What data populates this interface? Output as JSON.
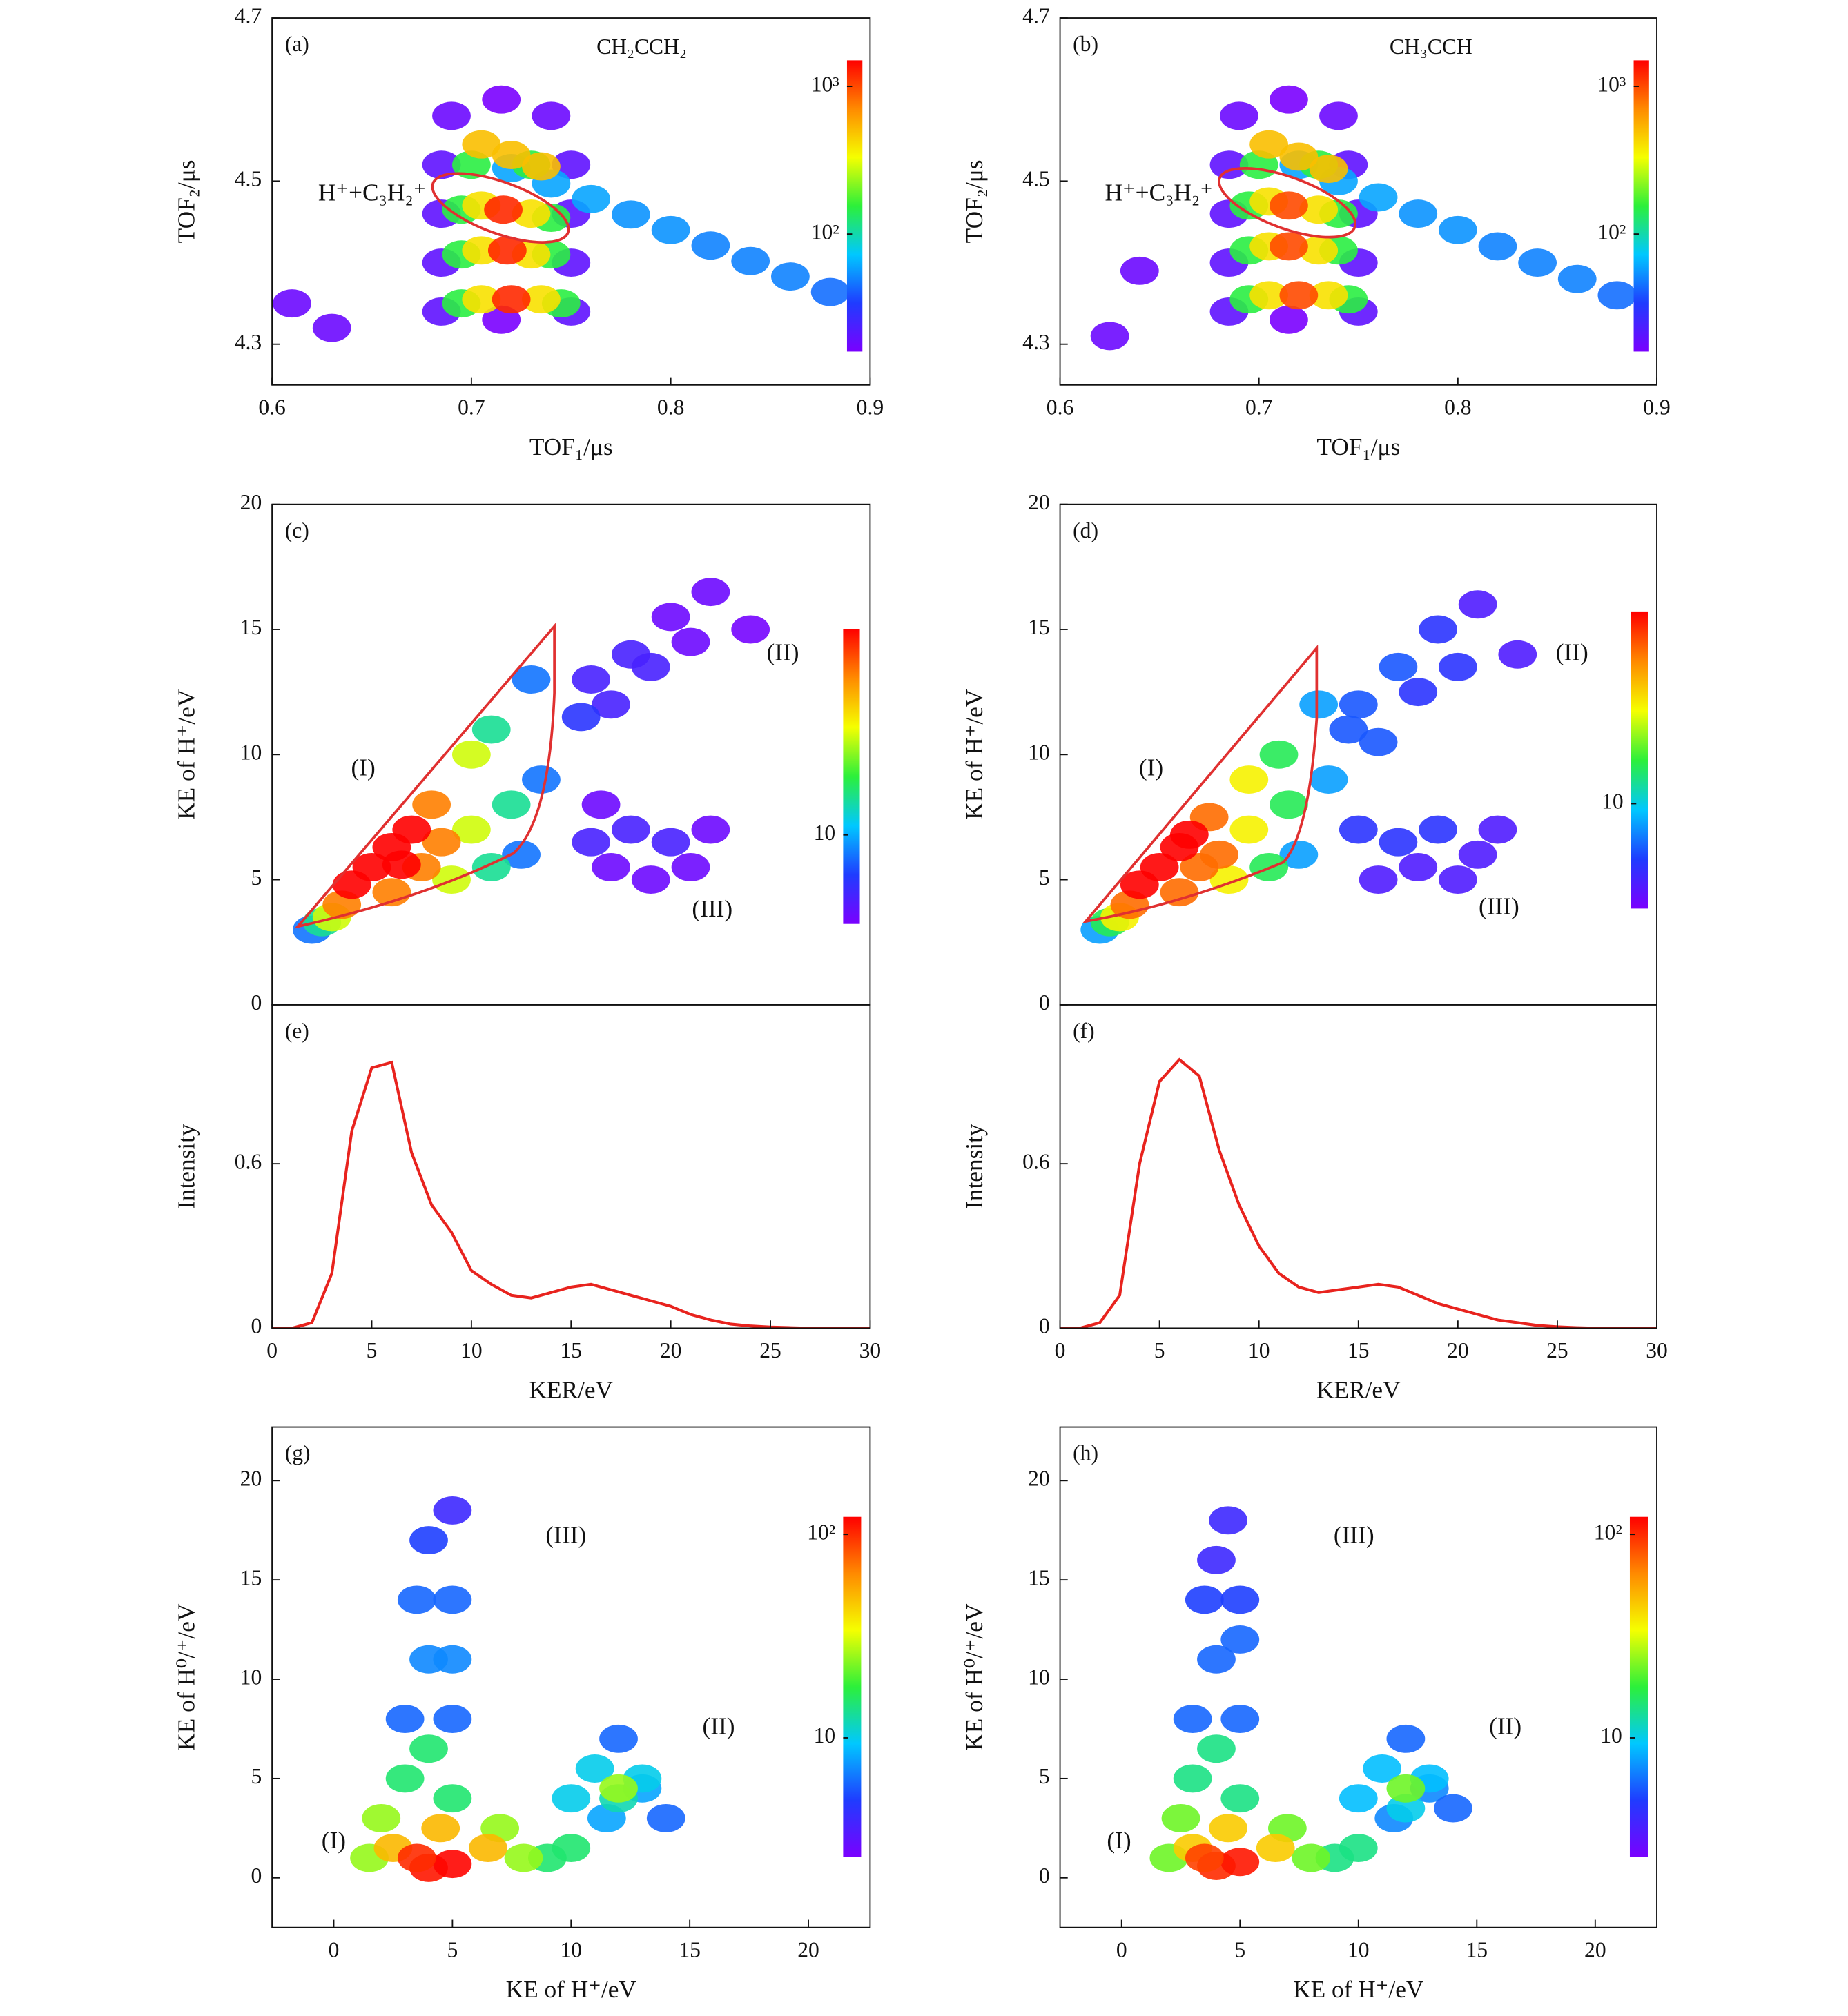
{
  "chart_data": [
    {
      "type": "heatmap",
      "panel_label": "(a)",
      "title": "CH₂CCH₂",
      "xlabel": "TOF₁/μs",
      "ylabel": "TOF₂/μs",
      "xlim": [
        0.6,
        0.9
      ],
      "xticks": [
        0.6,
        0.7,
        0.8,
        0.9
      ],
      "ylim": [
        4.25,
        4.7
      ],
      "yticks": [
        4.3,
        4.5,
        4.7
      ],
      "annotations": [
        "H⁺+C₃H₂⁺"
      ],
      "clim": [
        16,
        1500
      ],
      "log_color": true,
      "cticks": [
        {
          "value": 1000,
          "label": "10³"
        },
        {
          "value": 100,
          "label": "10²"
        }
      ],
      "colorscale": [
        "#7a00ff",
        "#1f3cff",
        "#00c8ff",
        "#2cf03a",
        "#f5ff00",
        "#ff8a00",
        "#ff0000"
      ],
      "x": [
        0.685,
        0.685,
        0.685,
        0.685,
        0.69,
        0.75,
        0.75,
        0.75,
        0.75,
        0.74,
        0.715,
        0.715,
        0.63,
        0.61,
        0.72,
        0.74,
        0.76,
        0.78,
        0.8,
        0.82,
        0.84,
        0.86,
        0.88,
        0.695,
        0.745,
        0.695,
        0.74,
        0.695,
        0.74,
        0.7,
        0.73,
        0.705,
        0.735,
        0.705,
        0.73,
        0.705,
        0.73,
        0.705,
        0.72,
        0.735,
        0.72,
        0.718,
        0.716
      ],
      "y": [
        4.34,
        4.4,
        4.46,
        4.52,
        4.58,
        4.34,
        4.4,
        4.46,
        4.52,
        4.58,
        4.6,
        4.33,
        4.32,
        4.35,
        4.516,
        4.497,
        4.478,
        4.459,
        4.44,
        4.421,
        4.402,
        4.383,
        4.364,
        4.35,
        4.35,
        4.41,
        4.41,
        4.465,
        4.455,
        4.52,
        4.52,
        4.355,
        4.355,
        4.415,
        4.41,
        4.47,
        4.46,
        4.545,
        4.532,
        4.518,
        4.355,
        4.415,
        4.465
      ],
      "values": [
        20,
        20,
        20,
        20,
        18,
        20,
        20,
        20,
        20,
        18,
        15,
        15,
        18,
        18,
        60,
        60,
        60,
        55,
        55,
        50,
        50,
        50,
        45,
        150,
        150,
        150,
        150,
        150,
        150,
        150,
        150,
        400,
        400,
        400,
        400,
        400,
        400,
        500,
        500,
        500,
        1200,
        1200,
        1200
      ]
    },
    {
      "type": "heatmap",
      "panel_label": "(b)",
      "title": "CH₃CCH",
      "xlabel": "TOF₁/μs",
      "ylabel": "TOF₂/μs",
      "xlim": [
        0.6,
        0.9
      ],
      "xticks": [
        0.6,
        0.7,
        0.8,
        0.9
      ],
      "ylim": [
        4.25,
        4.7
      ],
      "yticks": [
        4.3,
        4.5,
        4.7
      ],
      "annotations": [
        "H⁺+C₃H₂⁺"
      ],
      "clim": [
        16,
        1500
      ],
      "log_color": true,
      "cticks": [
        {
          "value": 1000,
          "label": "10³"
        },
        {
          "value": 100,
          "label": "10²"
        }
      ],
      "colorscale": [
        "#7a00ff",
        "#1f3cff",
        "#00c8ff",
        "#2cf03a",
        "#f5ff00",
        "#ff8a00",
        "#ff0000"
      ],
      "x": [
        0.685,
        0.685,
        0.685,
        0.685,
        0.69,
        0.75,
        0.75,
        0.75,
        0.745,
        0.74,
        0.715,
        0.715,
        0.625,
        0.64,
        0.72,
        0.74,
        0.76,
        0.78,
        0.8,
        0.82,
        0.84,
        0.86,
        0.88,
        0.695,
        0.745,
        0.695,
        0.74,
        0.695,
        0.74,
        0.7,
        0.73,
        0.705,
        0.735,
        0.705,
        0.73,
        0.705,
        0.73,
        0.705,
        0.72,
        0.735,
        0.72,
        0.715,
        0.715
      ],
      "y": [
        4.34,
        4.4,
        4.46,
        4.52,
        4.58,
        4.34,
        4.4,
        4.46,
        4.52,
        4.58,
        4.6,
        4.33,
        4.31,
        4.39,
        4.52,
        4.5,
        4.48,
        4.46,
        4.44,
        4.42,
        4.4,
        4.38,
        4.36,
        4.355,
        4.355,
        4.415,
        4.415,
        4.47,
        4.46,
        4.52,
        4.52,
        4.36,
        4.36,
        4.42,
        4.415,
        4.475,
        4.465,
        4.545,
        4.53,
        4.515,
        4.36,
        4.42,
        4.47
      ],
      "values": [
        20,
        20,
        20,
        20,
        18,
        20,
        20,
        20,
        20,
        18,
        15,
        15,
        18,
        18,
        60,
        60,
        60,
        55,
        55,
        50,
        50,
        50,
        45,
        150,
        150,
        150,
        150,
        150,
        150,
        150,
        150,
        400,
        400,
        400,
        400,
        400,
        400,
        500,
        500,
        500,
        1000,
        1000,
        1000
      ]
    },
    {
      "type": "heatmap",
      "panel_label": "(c)",
      "ylabel": "KE of H⁺/eV",
      "xlim": [
        0,
        30
      ],
      "ylim": [
        0,
        20
      ],
      "yticks": [
        0,
        5,
        10,
        15,
        20
      ],
      "annotations": [
        "(I)",
        "(II)",
        "(III)"
      ],
      "clim": [
        3.7,
        100
      ],
      "log_color": true,
      "cticks": [
        10
      ],
      "colorscale": [
        "#7a00ff",
        "#1f3cff",
        "#00c8ff",
        "#2cf03a",
        "#f5ff00",
        "#ff8a00",
        "#ff0000"
      ],
      "x": [
        16,
        18,
        20,
        22,
        17,
        19,
        15.5,
        21,
        24,
        16,
        18,
        20,
        22,
        17,
        19,
        21,
        16.5,
        13,
        12.5,
        13.5,
        2,
        11,
        12,
        11,
        2.5,
        10,
        10,
        3,
        9,
        3.5,
        8,
        8.5,
        6,
        7.5,
        4,
        5,
        6,
        7,
        6.5
      ],
      "y": [
        13,
        14,
        15.5,
        16.5,
        12,
        13.5,
        11.5,
        14.5,
        15,
        6.5,
        7,
        6.5,
        7,
        5.5,
        5,
        5.5,
        8,
        13,
        6,
        9,
        3,
        11,
        8,
        5.5,
        3.3,
        10,
        7,
        3.5,
        5,
        4,
        8,
        6.5,
        4.5,
        5.5,
        4.8,
        5.5,
        6.3,
        7,
        5.6
      ],
      "values": [
        5,
        5,
        4,
        4,
        5,
        5,
        6,
        4,
        3.8,
        5,
        5,
        5,
        4,
        4,
        4,
        4,
        4,
        8,
        8,
        8,
        8,
        15,
        15,
        15,
        15,
        30,
        30,
        30,
        30,
        60,
        60,
        60,
        60,
        60,
        100,
        150,
        150,
        130,
        110
      ]
    },
    {
      "type": "heatmap",
      "panel_label": "(d)",
      "ylabel": "KE of H⁺/eV",
      "xlim": [
        0,
        30
      ],
      "ylim": [
        0,
        20
      ],
      "yticks": [
        0,
        5,
        10,
        15,
        20
      ],
      "annotations": [
        "(I)",
        "(II)",
        "(III)"
      ],
      "clim": [
        3.1,
        85
      ],
      "log_color": true,
      "cticks": [
        10
      ],
      "colorscale": [
        "#7a00ff",
        "#1f3cff",
        "#00c8ff",
        "#2cf03a",
        "#f5ff00",
        "#ff8a00",
        "#ff0000"
      ],
      "x": [
        15,
        17,
        19,
        21,
        16,
        18,
        20,
        14.5,
        23,
        15,
        17,
        19,
        21,
        16,
        18,
        20,
        22,
        13,
        12,
        13.5,
        2,
        11,
        11.5,
        10.5,
        2.5,
        9.5,
        9.5,
        3,
        8.5,
        3.5,
        7.5,
        8,
        6,
        7,
        4,
        5,
        6,
        6.5
      ],
      "y": [
        12,
        13.5,
        15,
        16,
        10.5,
        12.5,
        13.5,
        11,
        14,
        7,
        6.5,
        7,
        6,
        5,
        5.5,
        5,
        7,
        12,
        6,
        9,
        3,
        10,
        8,
        5.5,
        3.3,
        9,
        7,
        3.5,
        5,
        4,
        7.5,
        6,
        4.5,
        5.5,
        4.8,
        5.5,
        6.3,
        6.8
      ],
      "values": [
        6,
        6,
        5,
        4,
        6,
        5,
        5,
        6,
        4,
        5,
        5,
        5,
        4,
        4,
        4,
        4,
        4,
        8,
        8,
        8,
        8,
        15,
        15,
        15,
        15,
        30,
        30,
        30,
        30,
        55,
        55,
        55,
        55,
        55,
        100,
        140,
        130,
        110
      ]
    },
    {
      "type": "line",
      "panel_label": "(e)",
      "xlabel": "KER/eV",
      "ylabel": "Intensity",
      "color": "#e8231e",
      "xlim": [
        0,
        30
      ],
      "xticks": [
        0,
        5,
        10,
        15,
        20,
        25,
        30
      ],
      "ylim": [
        0,
        1.18
      ],
      "yticks": [
        0,
        0.6
      ],
      "x": [
        0,
        1,
        2,
        3,
        4,
        5,
        6,
        7,
        8,
        9,
        10,
        11,
        12,
        13,
        14,
        15,
        16,
        17,
        18,
        19,
        20,
        21,
        22,
        23,
        24,
        25,
        26,
        27,
        28,
        29,
        30
      ],
      "values": [
        0,
        0,
        0.02,
        0.2,
        0.72,
        0.95,
        0.97,
        0.64,
        0.45,
        0.35,
        0.21,
        0.16,
        0.12,
        0.11,
        0.13,
        0.15,
        0.16,
        0.14,
        0.12,
        0.1,
        0.08,
        0.05,
        0.03,
        0.015,
        0.008,
        0.004,
        0.002,
        0,
        0,
        0,
        0
      ]
    },
    {
      "type": "line",
      "panel_label": "(f)",
      "xlabel": "KER/eV",
      "ylabel": "Intensity",
      "color": "#e8231e",
      "xlim": [
        0,
        30
      ],
      "xticks": [
        0,
        5,
        10,
        15,
        20,
        25,
        30
      ],
      "ylim": [
        0,
        1.18
      ],
      "yticks": [
        0,
        0.6
      ],
      "x": [
        0,
        1,
        2,
        3,
        4,
        5,
        6,
        7,
        8,
        9,
        10,
        11,
        12,
        13,
        14,
        15,
        16,
        17,
        18,
        19,
        20,
        21,
        22,
        23,
        24,
        25,
        26,
        27,
        28,
        29,
        30
      ],
      "values": [
        0,
        0,
        0.02,
        0.12,
        0.6,
        0.9,
        0.98,
        0.92,
        0.65,
        0.45,
        0.3,
        0.2,
        0.15,
        0.13,
        0.14,
        0.15,
        0.16,
        0.15,
        0.12,
        0.09,
        0.07,
        0.05,
        0.03,
        0.02,
        0.01,
        0.005,
        0.002,
        0,
        0,
        0,
        0
      ]
    },
    {
      "type": "heatmap",
      "panel_label": "(g)",
      "xlabel": "KE of H⁺/eV",
      "ylabel": "KE of H⁰/⁺/eV",
      "xlim": [
        -2.6,
        22.6
      ],
      "xticks": [
        0,
        5,
        10,
        15,
        20
      ],
      "ylim": [
        -2.5,
        22.7
      ],
      "yticks": [
        0,
        5,
        10,
        15,
        20
      ],
      "annotations": [
        "(I)",
        "(II)",
        "(III)"
      ],
      "clim": [
        2.6,
        122
      ],
      "log_color": true,
      "cticks": [
        {
          "value": 100,
          "label": "10²"
        },
        10
      ],
      "colorscale": [
        "#7a00ff",
        "#1f3cff",
        "#00c8ff",
        "#2cf03a",
        "#f5ff00",
        "#ff8a00",
        "#ff0000"
      ],
      "x": [
        3,
        5,
        4,
        5,
        3.5,
        5,
        4,
        5,
        13,
        11.5,
        14,
        10,
        12,
        13,
        11,
        12,
        9,
        3,
        5,
        10,
        4,
        2,
        7,
        8,
        1.5,
        12,
        2.5,
        6.5,
        4.5,
        4,
        5,
        3.5
      ],
      "y": [
        8,
        8,
        11,
        11,
        14,
        14,
        17,
        18.5,
        4.5,
        3,
        3,
        4,
        4,
        5,
        5.5,
        7,
        1,
        5,
        4,
        1.5,
        6.5,
        3,
        2.5,
        1,
        1,
        4.5,
        1.5,
        1.5,
        2.5,
        0.5,
        0.7,
        1
      ],
      "values": [
        6,
        6,
        7,
        7,
        6,
        6,
        5,
        4,
        8,
        8,
        6,
        10,
        12,
        10,
        10,
        6,
        15,
        15,
        15,
        15,
        15,
        25,
        25,
        25,
        25,
        25,
        50,
        50,
        50,
        110,
        120,
        100
      ]
    },
    {
      "type": "heatmap",
      "panel_label": "(h)",
      "xlabel": "KE of H⁺/eV",
      "ylabel": "KE of H⁰/⁺/eV",
      "xlim": [
        -2.6,
        22.6
      ],
      "xticks": [
        0,
        5,
        10,
        15,
        20
      ],
      "ylim": [
        -2.5,
        22.7
      ],
      "yticks": [
        0,
        5,
        10,
        15,
        20
      ],
      "annotations": [
        "(I)",
        "(II)",
        "(III)"
      ],
      "clim": [
        2.6,
        122
      ],
      "log_color": true,
      "cticks": [
        {
          "value": 100,
          "label": "10²"
        },
        10
      ],
      "colorscale": [
        "#7a00ff",
        "#1f3cff",
        "#00c8ff",
        "#2cf03a",
        "#f5ff00",
        "#ff8a00",
        "#ff0000"
      ],
      "x": [
        3,
        5,
        4,
        5,
        3.5,
        5,
        4,
        4.5,
        13,
        11.5,
        14,
        10,
        12,
        13,
        11,
        12,
        9,
        3,
        5,
        10,
        4,
        2.5,
        7,
        8,
        2,
        12,
        3,
        6.5,
        4.5,
        4,
        5,
        3.5
      ],
      "y": [
        8,
        8,
        11,
        12,
        14,
        14,
        16,
        18,
        4.5,
        3,
        3.5,
        4,
        3.5,
        5,
        5.5,
        7,
        1,
        5,
        4,
        1.5,
        6.5,
        3,
        2.5,
        1,
        1,
        4.5,
        1.5,
        1.5,
        2.5,
        0.6,
        0.8,
        1
      ],
      "values": [
        6,
        6,
        6,
        6,
        5,
        5,
        4,
        4,
        7,
        7,
        6,
        9,
        10,
        9,
        9,
        6,
        14,
        14,
        14,
        14,
        14,
        22,
        22,
        22,
        22,
        22,
        45,
        45,
        45,
        100,
        110,
        90
      ]
    }
  ]
}
